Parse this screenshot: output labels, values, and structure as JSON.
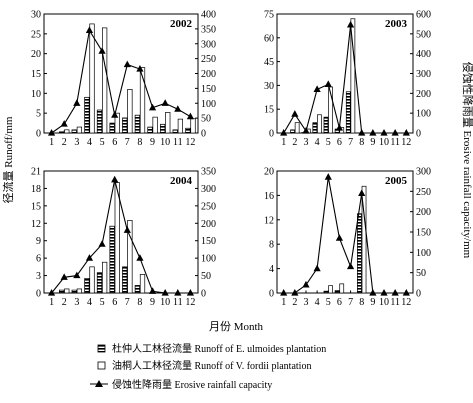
{
  "labels": {
    "y_left": "径流量 Runoff/mm",
    "y_right": "侵蚀性降雨量 Erosive rainfall capacity/mm",
    "x": "月份 Month"
  },
  "legend": [
    {
      "name": "杜仲人工林径流量 Runoff of E. ulmoides plantation",
      "type": "bar-hatched"
    },
    {
      "name": "油桐人工林径流量 Runoff of V. fordii plantation",
      "type": "bar-white"
    },
    {
      "name": "侵蚀性降雨量 Erosive rainfall capacity",
      "type": "line-triangle"
    }
  ],
  "chart_data": [
    {
      "type": "bar",
      "title": "2002",
      "categories": [
        "1",
        "2",
        "3",
        "4",
        "5",
        "6",
        "7",
        "8",
        "9",
        "10",
        "11",
        "12"
      ],
      "ylim_left": [
        0,
        30
      ],
      "yticks_left": [
        0,
        5,
        10,
        15,
        20,
        25,
        30
      ],
      "ylim_right": [
        0,
        400
      ],
      "yticks_right": [
        0,
        50,
        100,
        150,
        200,
        250,
        300,
        350,
        400
      ],
      "series": [
        {
          "name": "杜仲人工林径流量 Runoff of E. ulmoides plantation",
          "axis": "left",
          "values": [
            0,
            0.3,
            0.8,
            9,
            5.8,
            2.5,
            3.8,
            4.5,
            1.5,
            2.2,
            0.8,
            1.2
          ]
        },
        {
          "name": "油桐人工林径流量 Runoff of V. fordii plantation",
          "axis": "left",
          "values": [
            0,
            0.8,
            1.5,
            27.5,
            26.5,
            5,
            11,
            16.5,
            4,
            5.2,
            3.5,
            3.6
          ]
        },
        {
          "name": "侵蚀性降雨量 Erosive rainfall capacity",
          "axis": "right",
          "type": "line",
          "values": [
            0,
            30,
            100,
            345,
            275,
            60,
            230,
            215,
            85,
            100,
            80,
            55
          ]
        }
      ]
    },
    {
      "type": "bar",
      "title": "2003",
      "categories": [
        "1",
        "2",
        "3",
        "4",
        "5",
        "6",
        "7",
        "8",
        "9",
        "10",
        "11",
        "12"
      ],
      "ylim_left": [
        0,
        75
      ],
      "yticks_left": [
        0,
        15,
        30,
        45,
        60,
        75
      ],
      "ylim_right": [
        0,
        600
      ],
      "yticks_right": [
        0,
        100,
        200,
        300,
        400,
        500,
        600
      ],
      "series": [
        {
          "name": "杜仲人工林径流量 Runoff of E. ulmoides plantation",
          "axis": "left",
          "values": [
            0,
            2,
            0.3,
            6.5,
            10,
            2.5,
            26,
            0,
            0,
            0,
            0,
            0
          ]
        },
        {
          "name": "油桐人工林径流量 Runoff of V. fordii plantation",
          "axis": "left",
          "values": [
            0,
            6.5,
            2.5,
            11.5,
            29,
            3.5,
            72,
            0,
            0,
            0,
            0,
            0
          ]
        },
        {
          "name": "侵蚀性降雨量 Erosive rainfall capacity",
          "axis": "right",
          "type": "line",
          "values": [
            0,
            95,
            10,
            220,
            245,
            25,
            545,
            0,
            0,
            0,
            0,
            0
          ]
        }
      ]
    },
    {
      "type": "bar",
      "title": "2004",
      "categories": [
        "1",
        "2",
        "3",
        "4",
        "5",
        "6",
        "7",
        "8",
        "9",
        "10",
        "11",
        "12"
      ],
      "ylim_left": [
        0,
        21
      ],
      "yticks_left": [
        0,
        3,
        6,
        9,
        12,
        15,
        18,
        21
      ],
      "ylim_right": [
        0,
        350
      ],
      "yticks_right": [
        0,
        50,
        100,
        150,
        200,
        250,
        300,
        350
      ],
      "series": [
        {
          "name": "杜仲人工林径流量 Runoff of E. ulmoides plantation",
          "axis": "left",
          "values": [
            0,
            0.5,
            0.5,
            2.5,
            3.5,
            11.5,
            4.5,
            1.3,
            0,
            0,
            0,
            0
          ]
        },
        {
          "name": "油桐人工林径流量 Runoff of V. fordii plantation",
          "axis": "left",
          "values": [
            0,
            0.7,
            0.7,
            4.5,
            5.3,
            19,
            12.5,
            3.2,
            0.2,
            0,
            0,
            0
          ]
        },
        {
          "name": "侵蚀性降雨量 Erosive rainfall capacity",
          "axis": "right",
          "type": "line",
          "values": [
            0,
            45,
            50,
            100,
            140,
            325,
            180,
            100,
            5,
            0,
            0,
            0
          ]
        }
      ]
    },
    {
      "type": "bar",
      "title": "2005",
      "categories": [
        "1",
        "2",
        "3",
        "4",
        "5",
        "6",
        "7",
        "8",
        "9",
        "10",
        "11",
        "12"
      ],
      "ylim_left": [
        0,
        20
      ],
      "yticks_left": [
        0,
        4,
        8,
        12,
        16,
        20
      ],
      "ylim_right": [
        0,
        300
      ],
      "yticks_right": [
        0,
        50,
        100,
        150,
        200,
        250,
        300
      ],
      "series": [
        {
          "name": "杜仲人工林径流量 Runoff of E. ulmoides plantation",
          "axis": "left",
          "values": [
            0,
            0,
            0,
            0,
            0.3,
            0.4,
            0,
            13,
            0,
            0,
            0,
            0
          ]
        },
        {
          "name": "油桐人工林径流量 Runoff of V. fordii plantation",
          "axis": "left",
          "values": [
            0,
            0,
            0,
            0,
            1.2,
            1.5,
            0,
            17.5,
            0,
            0,
            0,
            0
          ]
        },
        {
          "name": "侵蚀性降雨量 Erosive rainfall capacity",
          "axis": "right",
          "type": "line",
          "values": [
            0,
            0,
            20,
            60,
            285,
            135,
            65,
            245,
            0,
            0,
            0,
            0
          ]
        }
      ]
    }
  ]
}
